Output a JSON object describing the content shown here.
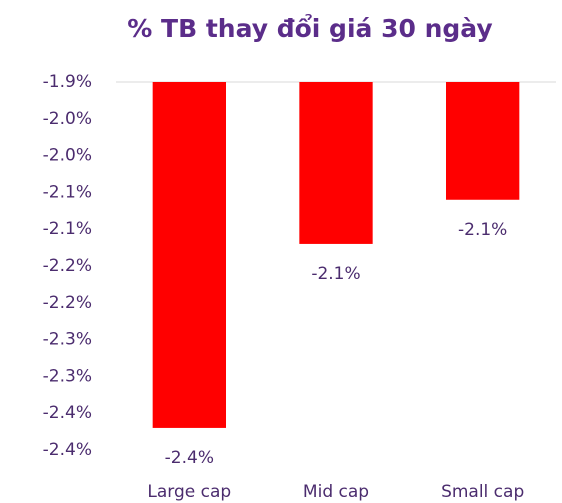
{
  "chart_data": {
    "type": "bar",
    "title": "% TB thay đổi giá 30 ngày",
    "categories": [
      "Large cap",
      "Mid cap",
      "Small cap"
    ],
    "values": [
      -2.37,
      -2.12,
      -2.06
    ],
    "value_labels": [
      "-2.4%",
      "-2.1%",
      "-2.1%"
    ],
    "color": "#ff0000",
    "ylim": [
      -2.4,
      -1.9
    ],
    "yticks": [
      {
        "value": -1.9,
        "label": "-1.9%"
      },
      {
        "value": -1.95,
        "label": "-2.0%"
      },
      {
        "value": -2.0,
        "label": "-2.0%"
      },
      {
        "value": -2.05,
        "label": "-2.1%"
      },
      {
        "value": -2.1,
        "label": "-2.1%"
      },
      {
        "value": -2.15,
        "label": "-2.2%"
      },
      {
        "value": -2.2,
        "label": "-2.2%"
      },
      {
        "value": -2.25,
        "label": "-2.3%"
      },
      {
        "value": -2.3,
        "label": "-2.3%"
      },
      {
        "value": -2.35,
        "label": "-2.4%"
      },
      {
        "value": -2.4,
        "label": "-2.4%"
      }
    ],
    "grid": false
  }
}
